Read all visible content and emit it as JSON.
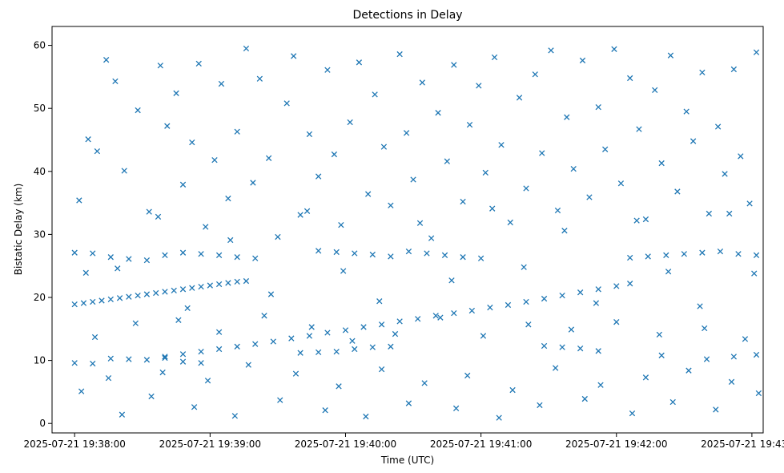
{
  "chart_data": {
    "type": "scatter",
    "title": "Detections in Delay",
    "xlabel": "Time (UTC)",
    "ylabel": "Bistatic Delay (km)",
    "x_unit": "time",
    "xlim": [
      "2025-07-21 19:37:50",
      "2025-07-21 19:43:05"
    ],
    "ylim": [
      -1.5,
      63
    ],
    "x_ticks": [
      "2025-07-21 19:38:00",
      "2025-07-21 19:39:00",
      "2025-07-21 19:40:00",
      "2025-07-21 19:41:00",
      "2025-07-21 19:42:00",
      "2025-07-21 19:43:00"
    ],
    "y_ticks": [
      0,
      10,
      20,
      30,
      40,
      50,
      60
    ],
    "marker": "x",
    "color": "#1f77b4",
    "grid": false,
    "series": [
      {
        "time_start": "2025-07-21 19:38:00",
        "points": [
          [
            "19:38:00",
            18.9
          ],
          [
            "19:38:04",
            19.1
          ],
          [
            "19:38:08",
            19.3
          ],
          [
            "19:38:12",
            19.5
          ],
          [
            "19:38:16",
            19.7
          ],
          [
            "19:38:20",
            19.9
          ],
          [
            "19:38:24",
            20.1
          ],
          [
            "19:38:28",
            20.3
          ],
          [
            "19:38:32",
            20.5
          ],
          [
            "19:38:36",
            20.7
          ],
          [
            "19:38:40",
            20.9
          ],
          [
            "19:38:44",
            21.1
          ],
          [
            "19:38:48",
            21.3
          ],
          [
            "19:38:52",
            21.5
          ],
          [
            "19:38:56",
            21.7
          ],
          [
            "19:39:00",
            21.9
          ],
          [
            "19:39:04",
            22.1
          ],
          [
            "19:39:08",
            22.3
          ],
          [
            "19:39:12",
            22.5
          ],
          [
            "19:39:16",
            22.6
          ],
          [
            "19:38:40",
            10.4
          ],
          [
            "19:38:48",
            11.0
          ],
          [
            "19:38:56",
            11.4
          ],
          [
            "19:39:04",
            11.8
          ],
          [
            "19:39:12",
            12.2
          ],
          [
            "19:39:20",
            12.6
          ],
          [
            "19:39:28",
            13.0
          ],
          [
            "19:39:36",
            13.5
          ],
          [
            "19:39:44",
            13.9
          ],
          [
            "19:39:52",
            14.4
          ],
          [
            "19:40:00",
            14.8
          ],
          [
            "19:40:08",
            15.3
          ],
          [
            "19:40:16",
            15.7
          ],
          [
            "19:40:24",
            16.2
          ],
          [
            "19:40:32",
            16.6
          ],
          [
            "19:40:40",
            17.1
          ],
          [
            "19:40:48",
            17.5
          ],
          [
            "19:40:56",
            17.9
          ],
          [
            "19:41:04",
            18.4
          ],
          [
            "19:41:12",
            18.8
          ],
          [
            "19:41:20",
            19.3
          ],
          [
            "19:41:28",
            19.8
          ],
          [
            "19:41:36",
            20.3
          ],
          [
            "19:41:44",
            20.8
          ],
          [
            "19:41:52",
            21.3
          ],
          [
            "19:42:00",
            21.8
          ],
          [
            "19:42:06",
            22.2
          ],
          [
            "19:38:00",
            27.1
          ],
          [
            "19:38:08",
            27.0
          ],
          [
            "19:38:16",
            26.4
          ],
          [
            "19:38:24",
            26.1
          ],
          [
            "19:38:32",
            25.9
          ],
          [
            "19:38:40",
            26.7
          ],
          [
            "19:38:48",
            27.1
          ],
          [
            "19:38:56",
            26.9
          ],
          [
            "19:39:04",
            26.7
          ],
          [
            "19:39:12",
            26.4
          ],
          [
            "19:39:20",
            26.2
          ],
          [
            "19:39:48",
            27.4
          ],
          [
            "19:39:56",
            27.2
          ],
          [
            "19:40:04",
            27.0
          ],
          [
            "19:40:12",
            26.8
          ],
          [
            "19:40:20",
            26.5
          ],
          [
            "19:40:28",
            27.3
          ],
          [
            "19:40:36",
            27.0
          ],
          [
            "19:40:44",
            26.7
          ],
          [
            "19:40:52",
            26.4
          ],
          [
            "19:41:00",
            26.2
          ],
          [
            "19:42:06",
            26.3
          ],
          [
            "19:42:14",
            26.5
          ],
          [
            "19:42:22",
            26.7
          ],
          [
            "19:42:30",
            26.9
          ],
          [
            "19:42:38",
            27.1
          ],
          [
            "19:42:46",
            27.3
          ],
          [
            "19:42:54",
            26.9
          ],
          [
            "19:43:02",
            26.7
          ],
          [
            "19:38:00",
            9.6
          ],
          [
            "19:38:08",
            9.5
          ],
          [
            "19:38:16",
            10.3
          ],
          [
            "19:38:24",
            10.2
          ],
          [
            "19:38:32",
            10.1
          ],
          [
            "19:38:40",
            10.6
          ],
          [
            "19:38:48",
            9.8
          ],
          [
            "19:38:56",
            9.6
          ],
          [
            "19:39:40",
            11.2
          ],
          [
            "19:39:48",
            11.3
          ],
          [
            "19:39:56",
            11.4
          ],
          [
            "19:40:04",
            11.8
          ],
          [
            "19:40:12",
            12.1
          ],
          [
            "19:40:20",
            12.2
          ],
          [
            "19:41:28",
            12.3
          ],
          [
            "19:41:36",
            12.1
          ],
          [
            "19:41:44",
            11.9
          ],
          [
            "19:41:52",
            11.5
          ],
          [
            "19:42:20",
            10.8
          ],
          [
            "19:42:40",
            10.2
          ],
          [
            "19:42:52",
            10.6
          ],
          [
            "19:43:02",
            10.9
          ],
          [
            "19:38:02",
            35.4
          ],
          [
            "19:38:06",
            45.1
          ],
          [
            "19:38:10",
            43.2
          ],
          [
            "19:38:14",
            57.7
          ],
          [
            "19:38:18",
            54.3
          ],
          [
            "19:38:22",
            40.1
          ],
          [
            "19:38:28",
            49.7
          ],
          [
            "19:38:33",
            33.6
          ],
          [
            "19:38:38",
            56.8
          ],
          [
            "19:38:41",
            47.2
          ],
          [
            "19:38:45",
            52.4
          ],
          [
            "19:38:48",
            37.9
          ],
          [
            "19:38:52",
            44.6
          ],
          [
            "19:38:55",
            57.1
          ],
          [
            "19:38:58",
            31.2
          ],
          [
            "19:39:02",
            41.8
          ],
          [
            "19:39:05",
            53.9
          ],
          [
            "19:39:08",
            35.7
          ],
          [
            "19:39:12",
            46.3
          ],
          [
            "19:39:16",
            59.5
          ],
          [
            "19:39:19",
            38.2
          ],
          [
            "19:39:22",
            54.7
          ],
          [
            "19:39:26",
            42.1
          ],
          [
            "19:39:30",
            29.6
          ],
          [
            "19:39:34",
            50.8
          ],
          [
            "19:39:37",
            58.3
          ],
          [
            "19:39:40",
            33.1
          ],
          [
            "19:39:44",
            45.9
          ],
          [
            "19:39:48",
            39.2
          ],
          [
            "19:39:52",
            56.1
          ],
          [
            "19:39:55",
            42.7
          ],
          [
            "19:39:58",
            31.5
          ],
          [
            "19:40:02",
            47.8
          ],
          [
            "19:40:06",
            57.3
          ],
          [
            "19:40:10",
            36.4
          ],
          [
            "19:40:13",
            52.2
          ],
          [
            "19:40:17",
            43.9
          ],
          [
            "19:40:20",
            34.6
          ],
          [
            "19:40:24",
            58.6
          ],
          [
            "19:40:27",
            46.1
          ],
          [
            "19:40:30",
            38.7
          ],
          [
            "19:40:34",
            54.1
          ],
          [
            "19:40:38",
            29.4
          ],
          [
            "19:40:41",
            49.3
          ],
          [
            "19:40:45",
            41.6
          ],
          [
            "19:40:48",
            56.9
          ],
          [
            "19:40:52",
            35.2
          ],
          [
            "19:40:55",
            47.4
          ],
          [
            "19:40:59",
            53.6
          ],
          [
            "19:41:02",
            39.8
          ],
          [
            "19:41:06",
            58.1
          ],
          [
            "19:41:09",
            44.2
          ],
          [
            "19:41:13",
            31.9
          ],
          [
            "19:41:17",
            51.7
          ],
          [
            "19:41:20",
            37.3
          ],
          [
            "19:41:24",
            55.4
          ],
          [
            "19:41:27",
            42.9
          ],
          [
            "19:41:31",
            59.2
          ],
          [
            "19:41:34",
            33.8
          ],
          [
            "19:41:38",
            48.6
          ],
          [
            "19:41:41",
            40.4
          ],
          [
            "19:41:45",
            57.6
          ],
          [
            "19:41:48",
            35.9
          ],
          [
            "19:41:52",
            50.2
          ],
          [
            "19:41:55",
            43.5
          ],
          [
            "19:41:59",
            59.4
          ],
          [
            "19:42:02",
            38.1
          ],
          [
            "19:42:06",
            54.8
          ],
          [
            "19:42:10",
            46.7
          ],
          [
            "19:42:13",
            32.4
          ],
          [
            "19:42:17",
            52.9
          ],
          [
            "19:42:20",
            41.3
          ],
          [
            "19:42:24",
            58.4
          ],
          [
            "19:42:27",
            36.8
          ],
          [
            "19:42:31",
            49.5
          ],
          [
            "19:42:34",
            44.8
          ],
          [
            "19:42:38",
            55.7
          ],
          [
            "19:42:41",
            33.3
          ],
          [
            "19:42:45",
            47.1
          ],
          [
            "19:42:48",
            39.6
          ],
          [
            "19:42:52",
            56.2
          ],
          [
            "19:42:55",
            42.4
          ],
          [
            "19:42:59",
            34.9
          ],
          [
            "19:43:02",
            58.9
          ],
          [
            "19:38:03",
            5.1
          ],
          [
            "19:38:09",
            13.7
          ],
          [
            "19:38:15",
            7.2
          ],
          [
            "19:38:21",
            1.4
          ],
          [
            "19:38:27",
            15.9
          ],
          [
            "19:38:34",
            4.3
          ],
          [
            "19:38:39",
            8.1
          ],
          [
            "19:38:46",
            16.4
          ],
          [
            "19:38:53",
            2.6
          ],
          [
            "19:38:59",
            6.8
          ],
          [
            "19:39:04",
            14.5
          ],
          [
            "19:39:11",
            1.2
          ],
          [
            "19:39:17",
            9.3
          ],
          [
            "19:39:24",
            17.1
          ],
          [
            "19:39:31",
            3.7
          ],
          [
            "19:39:38",
            7.9
          ],
          [
            "19:39:45",
            15.3
          ],
          [
            "19:39:51",
            2.1
          ],
          [
            "19:39:57",
            5.9
          ],
          [
            "19:40:03",
            13.1
          ],
          [
            "19:40:09",
            1.1
          ],
          [
            "19:40:16",
            8.6
          ],
          [
            "19:40:22",
            14.2
          ],
          [
            "19:40:28",
            3.2
          ],
          [
            "19:40:35",
            6.4
          ],
          [
            "19:40:42",
            16.8
          ],
          [
            "19:40:49",
            2.4
          ],
          [
            "19:40:54",
            7.6
          ],
          [
            "19:41:01",
            13.9
          ],
          [
            "19:41:08",
            0.9
          ],
          [
            "19:41:14",
            5.3
          ],
          [
            "19:41:21",
            15.7
          ],
          [
            "19:41:26",
            2.9
          ],
          [
            "19:41:33",
            8.8
          ],
          [
            "19:41:40",
            14.9
          ],
          [
            "19:41:46",
            3.9
          ],
          [
            "19:41:53",
            6.1
          ],
          [
            "19:42:00",
            16.1
          ],
          [
            "19:42:07",
            1.6
          ],
          [
            "19:42:13",
            7.3
          ],
          [
            "19:42:19",
            14.1
          ],
          [
            "19:42:25",
            3.4
          ],
          [
            "19:42:32",
            8.4
          ],
          [
            "19:42:39",
            15.1
          ],
          [
            "19:42:44",
            2.2
          ],
          [
            "19:42:51",
            6.6
          ],
          [
            "19:42:57",
            13.4
          ],
          [
            "19:43:03",
            4.8
          ],
          [
            "19:38:05",
            23.9
          ],
          [
            "19:38:19",
            24.6
          ],
          [
            "19:38:37",
            32.8
          ],
          [
            "19:38:50",
            18.3
          ],
          [
            "19:39:09",
            29.1
          ],
          [
            "19:39:27",
            20.5
          ],
          [
            "19:39:43",
            33.7
          ],
          [
            "19:39:59",
            24.2
          ],
          [
            "19:40:15",
            19.4
          ],
          [
            "19:40:33",
            31.8
          ],
          [
            "19:40:47",
            22.7
          ],
          [
            "19:41:05",
            34.1
          ],
          [
            "19:41:19",
            24.8
          ],
          [
            "19:41:37",
            30.6
          ],
          [
            "19:41:51",
            19.1
          ],
          [
            "19:42:09",
            32.2
          ],
          [
            "19:42:23",
            24.1
          ],
          [
            "19:42:37",
            18.6
          ],
          [
            "19:42:50",
            33.3
          ],
          [
            "19:43:01",
            23.8
          ]
        ]
      }
    ]
  }
}
